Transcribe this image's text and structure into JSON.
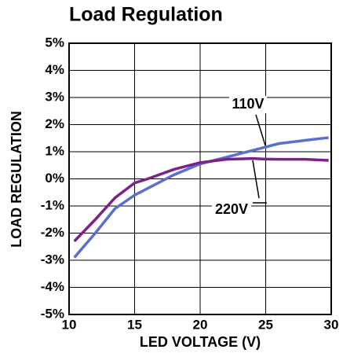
{
  "chart_data": {
    "type": "line",
    "title": "Load Regulation",
    "xlabel": "LED VOLTAGE (V)",
    "ylabel": "LOAD REGULATION",
    "xlim": [
      10,
      30
    ],
    "xticks": [
      10,
      15,
      20,
      25,
      30
    ],
    "ylim": [
      -5,
      5
    ],
    "yticks": [
      {
        "value": -5,
        "label": "-5%"
      },
      {
        "value": -4,
        "label": "-4%"
      },
      {
        "value": -3,
        "label": "-3%"
      },
      {
        "value": -2,
        "label": "-2%"
      },
      {
        "value": -1,
        "label": "-1%"
      },
      {
        "value": 0,
        "label": "0%"
      },
      {
        "value": 1,
        "label": "1%"
      },
      {
        "value": 2,
        "label": "2%"
      },
      {
        "value": 3,
        "label": "3%"
      },
      {
        "value": 4,
        "label": "4%"
      },
      {
        "value": 5,
        "label": "5%"
      }
    ],
    "grid": true,
    "series": [
      {
        "name": "110V",
        "color": "#5b6fd0",
        "x": [
          10.4,
          12,
          13.5,
          15,
          16,
          18,
          20,
          22,
          24,
          26,
          28,
          29.8
        ],
        "values": [
          -2.9,
          -2.0,
          -1.1,
          -0.6,
          -0.35,
          0.15,
          0.55,
          0.8,
          1.05,
          1.3,
          1.42,
          1.52
        ]
      },
      {
        "name": "220V",
        "color": "#7d2088",
        "x": [
          10.4,
          12,
          13.5,
          15,
          16,
          18,
          20,
          22,
          24,
          25,
          26,
          28,
          29.8
        ],
        "values": [
          -2.3,
          -1.5,
          -0.7,
          -0.15,
          0.0,
          0.35,
          0.6,
          0.72,
          0.75,
          0.73,
          0.72,
          0.72,
          0.68
        ]
      }
    ]
  }
}
